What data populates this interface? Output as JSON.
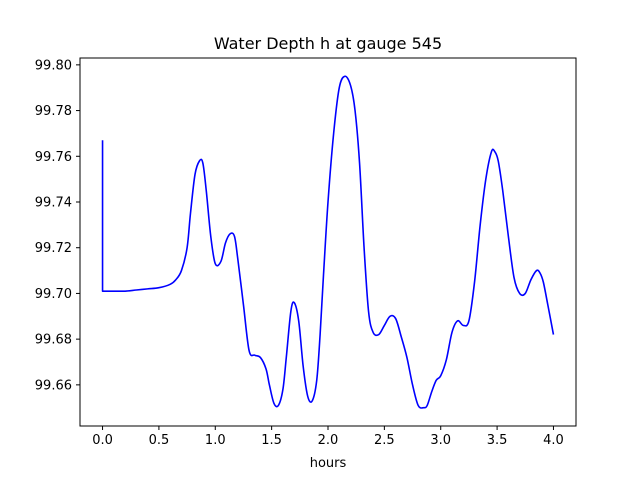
{
  "chart_data": {
    "type": "line",
    "title": "Water Depth h at gauge 545",
    "xlabel": "hours",
    "ylabel": "",
    "xlim": [
      -0.2,
      4.2
    ],
    "ylim": [
      99.642,
      99.803
    ],
    "xticks": [
      0.0,
      0.5,
      1.0,
      1.5,
      2.0,
      2.5,
      3.0,
      3.5,
      4.0
    ],
    "xtick_labels": [
      "0.0",
      "0.5",
      "1.0",
      "1.5",
      "2.0",
      "2.5",
      "3.0",
      "3.5",
      "4.0"
    ],
    "yticks": [
      99.66,
      99.68,
      99.7,
      99.72,
      99.74,
      99.76,
      99.78,
      99.8
    ],
    "ytick_labels": [
      "99.66",
      "99.68",
      "99.70",
      "99.72",
      "99.74",
      "99.76",
      "99.78",
      "99.80"
    ],
    "grid": false,
    "series": [
      {
        "color": "#0000ff",
        "x": [
          0.0,
          0.0,
          0.02,
          0.1,
          0.2,
          0.3,
          0.4,
          0.5,
          0.6,
          0.65,
          0.7,
          0.75,
          0.78,
          0.82,
          0.86,
          0.89,
          0.92,
          0.96,
          1.0,
          1.05,
          1.09,
          1.13,
          1.17,
          1.2,
          1.25,
          1.3,
          1.35,
          1.4,
          1.45,
          1.48,
          1.52,
          1.56,
          1.6,
          1.63,
          1.67,
          1.7,
          1.74,
          1.78,
          1.82,
          1.86,
          1.9,
          1.93,
          1.96,
          2.0,
          2.05,
          2.1,
          2.15,
          2.2,
          2.24,
          2.28,
          2.32,
          2.36,
          2.4,
          2.45,
          2.5,
          2.55,
          2.6,
          2.65,
          2.7,
          2.75,
          2.8,
          2.85,
          2.88,
          2.92,
          2.96,
          3.0,
          3.05,
          3.1,
          3.15,
          3.2,
          3.25,
          3.3,
          3.35,
          3.4,
          3.45,
          3.48,
          3.51,
          3.55,
          3.6,
          3.65,
          3.7,
          3.75,
          3.8,
          3.85,
          3.88,
          3.91,
          3.95,
          4.0
        ],
        "y": [
          99.767,
          99.701,
          99.701,
          99.701,
          99.701,
          99.7015,
          99.702,
          99.7025,
          99.704,
          99.706,
          99.71,
          99.72,
          99.735,
          99.752,
          99.758,
          99.757,
          99.745,
          99.725,
          99.713,
          99.714,
          99.722,
          99.726,
          99.725,
          99.715,
          99.695,
          99.675,
          99.673,
          99.672,
          99.667,
          99.66,
          99.652,
          99.651,
          99.658,
          99.672,
          99.692,
          99.696,
          99.688,
          99.668,
          99.655,
          99.653,
          99.662,
          99.682,
          99.708,
          99.74,
          99.77,
          99.79,
          99.795,
          99.791,
          99.78,
          99.757,
          99.72,
          99.692,
          99.683,
          99.682,
          99.686,
          99.69,
          99.689,
          99.681,
          99.672,
          99.66,
          99.651,
          99.65,
          99.651,
          99.657,
          99.662,
          99.664,
          99.671,
          99.683,
          99.688,
          99.686,
          99.688,
          99.705,
          99.73,
          99.75,
          99.762,
          99.762,
          99.758,
          99.745,
          99.725,
          99.707,
          99.7,
          99.7,
          99.706,
          99.71,
          99.709,
          99.705,
          99.695,
          99.682
        ]
      }
    ]
  }
}
